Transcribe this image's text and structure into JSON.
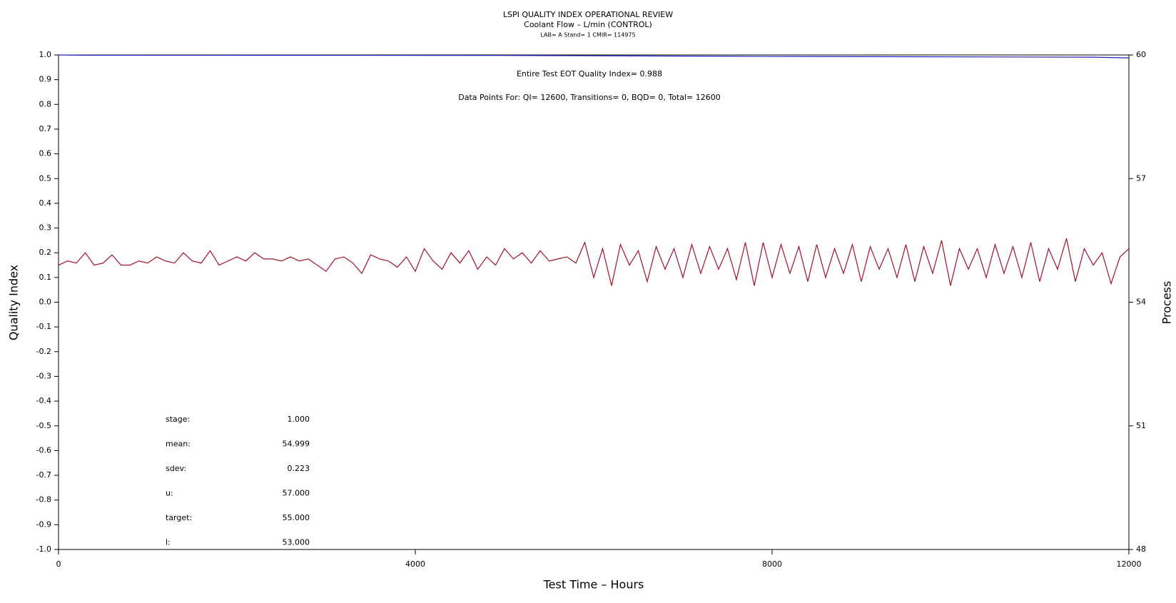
{
  "chart_data": {
    "type": "line",
    "title": "LSPI QUALITY INDEX OPERATIONAL REVIEW",
    "subtitle": "Coolant Flow – L/min (CONTROL)",
    "caption": "LAB= A Stand= 1 CMIR= 114975",
    "annotations": [
      "Entire Test EOT Quality Index=   0.988",
      "Data Points For: QI= 12600, Transitions=    0, BQD=    0, Total= 12600"
    ],
    "stats": [
      {
        "label": "stage:",
        "value": "1.000"
      },
      {
        "label": "mean:",
        "value": "54.999"
      },
      {
        "label": "sdev:",
        "value": "0.223"
      },
      {
        "label": "u:",
        "value": "57.000"
      },
      {
        "label": "target:",
        "value": "55.000"
      },
      {
        "label": "l:",
        "value": "53.000"
      }
    ],
    "x_label": "Test Time – Hours",
    "y_label": "Quality Index",
    "y2_label": "Process",
    "xlim": [
      0,
      12000
    ],
    "xticks": [
      0,
      4000,
      8000,
      12000
    ],
    "ylim": [
      -1,
      1
    ],
    "yticks": [
      {
        "value": -1,
        "label": "-1.0"
      },
      -0.9,
      -0.8,
      -0.7,
      -0.6,
      -0.5,
      -0.4,
      -0.3,
      -0.2,
      -0.1,
      {
        "value": 0,
        "label": "0.0"
      },
      0.1,
      0.2,
      0.3,
      0.4,
      0.5,
      0.6,
      0.7,
      0.8,
      0.9,
      {
        "value": 1,
        "label": "1.0"
      }
    ],
    "y2lim": [
      48,
      60
    ],
    "y2ticks": [
      48,
      51,
      54,
      57,
      60
    ],
    "series": [
      {
        "name": "Quality Index",
        "color": "#2020c0",
        "x": [
          0,
          300,
          4950,
          5800,
          7900,
          11600,
          12000
        ],
        "values": [
          1.0,
          0.999,
          0.998,
          0.997,
          0.994,
          0.991,
          0.988
        ]
      },
      {
        "name": "Process",
        "color": "#a0102a",
        "axis": "y2",
        "x": [
          0,
          100,
          200,
          300,
          400,
          500,
          600,
          700,
          800,
          900,
          1000,
          1100,
          1200,
          1300,
          1400,
          1500,
          1600,
          1700,
          1800,
          1900,
          2000,
          2100,
          2200,
          2300,
          2400,
          2500,
          2600,
          2700,
          2800,
          2900,
          3000,
          3100,
          3200,
          3300,
          3400,
          3500,
          3600,
          3700,
          3800,
          3900,
          4000,
          4100,
          4200,
          4300,
          4400,
          4500,
          4600,
          4700,
          4800,
          4900,
          5000,
          5100,
          5200,
          5300,
          5400,
          5500,
          5600,
          5700,
          5800,
          5900,
          6000,
          6100,
          6200,
          6300,
          6400,
          6500,
          6600,
          6700,
          6800,
          6900,
          7000,
          7100,
          7200,
          7300,
          7400,
          7500,
          7600,
          7700,
          7800,
          7900,
          8000,
          8100,
          8200,
          8300,
          8400,
          8500,
          8600,
          8700,
          8800,
          8900,
          9000,
          9100,
          9200,
          9300,
          9400,
          9500,
          9600,
          9700,
          9800,
          9900,
          10000,
          10100,
          10200,
          10300,
          10400,
          10500,
          10600,
          10700,
          10800,
          10900,
          11000,
          11100,
          11200,
          11300,
          11400,
          11500,
          11600,
          11700,
          11800,
          11900,
          12000
        ],
        "values": [
          54.9,
          55.0,
          54.95,
          55.2,
          54.9,
          54.95,
          55.15,
          54.9,
          54.9,
          55.0,
          54.95,
          55.1,
          55.0,
          54.95,
          55.2,
          55.0,
          54.95,
          55.25,
          54.9,
          55.0,
          55.1,
          55.0,
          55.2,
          55.05,
          55.05,
          55.0,
          55.1,
          55.0,
          55.05,
          54.9,
          54.75,
          55.05,
          55.1,
          54.95,
          54.7,
          55.15,
          55.05,
          55.0,
          54.85,
          55.1,
          54.75,
          55.3,
          55.0,
          54.8,
          55.2,
          54.95,
          55.25,
          54.8,
          55.1,
          54.9,
          55.3,
          55.05,
          55.2,
          54.95,
          55.25,
          55.0,
          55.05,
          55.1,
          54.95,
          55.45,
          54.6,
          55.3,
          54.4,
          55.4,
          54.9,
          55.25,
          54.5,
          55.35,
          54.8,
          55.3,
          54.6,
          55.4,
          54.7,
          55.35,
          54.8,
          55.3,
          54.55,
          55.45,
          54.4,
          55.45,
          54.6,
          55.4,
          54.7,
          55.35,
          54.5,
          55.4,
          54.6,
          55.3,
          54.7,
          55.4,
          54.5,
          55.35,
          54.8,
          55.3,
          54.6,
          55.4,
          54.5,
          55.35,
          54.7,
          55.5,
          54.4,
          55.3,
          54.8,
          55.3,
          54.6,
          55.4,
          54.7,
          55.35,
          54.6,
          55.45,
          54.5,
          55.3,
          54.8,
          55.55,
          54.5,
          55.3,
          54.9,
          55.2,
          54.45,
          55.1,
          55.3
        ]
      }
    ]
  }
}
